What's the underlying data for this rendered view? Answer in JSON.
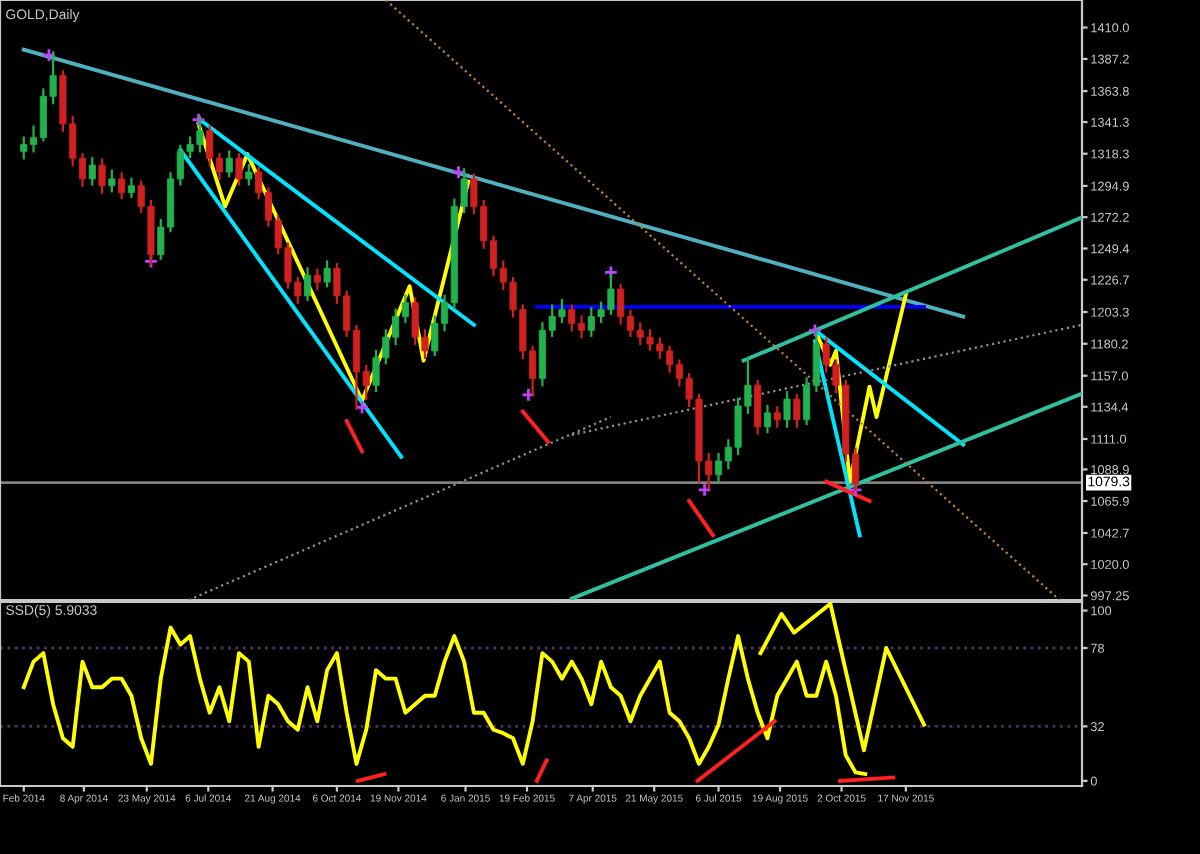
{
  "chart_data": [
    {
      "type": "candlestick",
      "title": "GOLD,Daily",
      "x": [
        "2014-02-24",
        "2014-03-03",
        "2014-03-10",
        "2014-03-17",
        "2014-03-24",
        "2014-03-31",
        "2014-04-07",
        "2014-04-14",
        "2014-04-21",
        "2014-04-28",
        "2014-05-05",
        "2014-05-12",
        "2014-05-19",
        "2014-05-26",
        "2014-06-02",
        "2014-06-09",
        "2014-06-16",
        "2014-06-23",
        "2014-06-30",
        "2014-07-07",
        "2014-07-14",
        "2014-07-21",
        "2014-07-28",
        "2014-08-04",
        "2014-08-11",
        "2014-08-18",
        "2014-08-25",
        "2014-09-01",
        "2014-09-08",
        "2014-09-15",
        "2014-09-22",
        "2014-09-29",
        "2014-10-06",
        "2014-10-13",
        "2014-10-20",
        "2014-10-27",
        "2014-11-03",
        "2014-11-10",
        "2014-11-17",
        "2014-11-24",
        "2014-12-01",
        "2014-12-08",
        "2014-12-15",
        "2014-12-22",
        "2014-12-29",
        "2015-01-05",
        "2015-01-12",
        "2015-01-19",
        "2015-01-26",
        "2015-02-02",
        "2015-02-09",
        "2015-02-16",
        "2015-02-23",
        "2015-03-02",
        "2015-03-09",
        "2015-03-16",
        "2015-03-23",
        "2015-03-30",
        "2015-04-06",
        "2015-04-13",
        "2015-04-20",
        "2015-04-27",
        "2015-05-04",
        "2015-05-11",
        "2015-05-18",
        "2015-05-25",
        "2015-06-01",
        "2015-06-08",
        "2015-06-15",
        "2015-06-22",
        "2015-06-29",
        "2015-07-06",
        "2015-07-13",
        "2015-07-20",
        "2015-07-27",
        "2015-08-03",
        "2015-08-10",
        "2015-08-17",
        "2015-08-24",
        "2015-08-31",
        "2015-09-07",
        "2015-09-14",
        "2015-09-21",
        "2015-09-28",
        "2015-10-05",
        "2015-10-12"
      ],
      "ohlc": [
        [
          1320,
          1330,
          1315,
          1325
        ],
        [
          1325,
          1338,
          1320,
          1330
        ],
        [
          1330,
          1365,
          1328,
          1360
        ],
        [
          1360,
          1392,
          1355,
          1375
        ],
        [
          1375,
          1378,
          1335,
          1340
        ],
        [
          1340,
          1345,
          1310,
          1315
        ],
        [
          1315,
          1318,
          1295,
          1300
        ],
        [
          1300,
          1315,
          1296,
          1310
        ],
        [
          1310,
          1314,
          1290,
          1295
        ],
        [
          1295,
          1306,
          1291,
          1300
        ],
        [
          1300,
          1304,
          1286,
          1290
        ],
        [
          1290,
          1300,
          1287,
          1295
        ],
        [
          1295,
          1298,
          1276,
          1280
        ],
        [
          1280,
          1284,
          1238,
          1245
        ],
        [
          1245,
          1270,
          1242,
          1265
        ],
        [
          1265,
          1304,
          1262,
          1300
        ],
        [
          1300,
          1324,
          1296,
          1320
        ],
        [
          1320,
          1330,
          1316,
          1325
        ],
        [
          1325,
          1345,
          1320,
          1335
        ],
        [
          1335,
          1338,
          1310,
          1315
        ],
        [
          1315,
          1318,
          1300,
          1305
        ],
        [
          1305,
          1320,
          1302,
          1315
        ],
        [
          1315,
          1318,
          1296,
          1300
        ],
        [
          1300,
          1310,
          1296,
          1305
        ],
        [
          1305,
          1308,
          1286,
          1290
        ],
        [
          1290,
          1293,
          1266,
          1270
        ],
        [
          1270,
          1273,
          1246,
          1250
        ],
        [
          1250,
          1253,
          1221,
          1225
        ],
        [
          1225,
          1228,
          1210,
          1215
        ],
        [
          1215,
          1235,
          1212,
          1230
        ],
        [
          1230,
          1234,
          1220,
          1225
        ],
        [
          1225,
          1240,
          1222,
          1235
        ],
        [
          1235,
          1238,
          1210,
          1215
        ],
        [
          1215,
          1218,
          1186,
          1190
        ],
        [
          1190,
          1193,
          1133,
          1160
        ],
        [
          1160,
          1164,
          1140,
          1150
        ],
        [
          1150,
          1175,
          1146,
          1170
        ],
        [
          1170,
          1190,
          1166,
          1185
        ],
        [
          1185,
          1205,
          1180,
          1200
        ],
        [
          1200,
          1215,
          1196,
          1210
        ],
        [
          1210,
          1213,
          1180,
          1185
        ],
        [
          1185,
          1190,
          1170,
          1175
        ],
        [
          1175,
          1200,
          1172,
          1195
        ],
        [
          1195,
          1215,
          1190,
          1210
        ],
        [
          1210,
          1285,
          1206,
          1280
        ],
        [
          1280,
          1307,
          1276,
          1300
        ],
        [
          1300,
          1303,
          1275,
          1280
        ],
        [
          1280,
          1284,
          1250,
          1255
        ],
        [
          1255,
          1258,
          1230,
          1235
        ],
        [
          1235,
          1240,
          1220,
          1225
        ],
        [
          1225,
          1228,
          1200,
          1205
        ],
        [
          1205,
          1208,
          1170,
          1175
        ],
        [
          1175,
          1178,
          1143,
          1155
        ],
        [
          1155,
          1195,
          1150,
          1190
        ],
        [
          1190,
          1208,
          1186,
          1200
        ],
        [
          1200,
          1212,
          1196,
          1205
        ],
        [
          1205,
          1208,
          1190,
          1195
        ],
        [
          1195,
          1200,
          1185,
          1190
        ],
        [
          1190,
          1206,
          1186,
          1200
        ],
        [
          1200,
          1210,
          1196,
          1205
        ],
        [
          1205,
          1230,
          1202,
          1220
        ],
        [
          1220,
          1223,
          1195,
          1200
        ],
        [
          1200,
          1204,
          1186,
          1190
        ],
        [
          1190,
          1195,
          1180,
          1185
        ],
        [
          1185,
          1190,
          1176,
          1180
        ],
        [
          1180,
          1184,
          1170,
          1175
        ],
        [
          1175,
          1178,
          1160,
          1165
        ],
        [
          1165,
          1168,
          1150,
          1155
        ],
        [
          1155,
          1158,
          1135,
          1140
        ],
        [
          1140,
          1143,
          1080,
          1095
        ],
        [
          1095,
          1100,
          1075,
          1085
        ],
        [
          1085,
          1100,
          1080,
          1095
        ],
        [
          1095,
          1110,
          1090,
          1105
        ],
        [
          1105,
          1140,
          1100,
          1135
        ],
        [
          1135,
          1170,
          1130,
          1150
        ],
        [
          1150,
          1153,
          1115,
          1120
        ],
        [
          1120,
          1135,
          1116,
          1130
        ],
        [
          1130,
          1134,
          1120,
          1125
        ],
        [
          1125,
          1145,
          1120,
          1140
        ],
        [
          1140,
          1143,
          1120,
          1125
        ],
        [
          1125,
          1155,
          1122,
          1150
        ],
        [
          1150,
          1190,
          1146,
          1180
        ],
        [
          1180,
          1184,
          1160,
          1165
        ],
        [
          1165,
          1168,
          1145,
          1150
        ],
        [
          1150,
          1153,
          1095,
          1100
        ],
        [
          1100,
          1104,
          1074,
          1078
        ]
      ],
      "colors": [
        "#22b14c",
        "#22b14c",
        "#22b14c",
        "#22b14c",
        "#d02020",
        "#d02020",
        "#d02020",
        "#22b14c",
        "#d02020",
        "#22b14c",
        "#d02020",
        "#22b14c",
        "#d02020",
        "#d02020",
        "#22b14c",
        "#22b14c",
        "#22b14c",
        "#22b14c",
        "#22b14c",
        "#d02020",
        "#d02020",
        "#22b14c",
        "#d02020",
        "#22b14c",
        "#d02020",
        "#d02020",
        "#d02020",
        "#d02020",
        "#d02020",
        "#22b14c",
        "#d02020",
        "#22b14c",
        "#d02020",
        "#d02020",
        "#d02020",
        "#d02020",
        "#22b14c",
        "#22b14c",
        "#22b14c",
        "#22b14c",
        "#d02020",
        "#d02020",
        "#22b14c",
        "#22b14c",
        "#22b14c",
        "#22b14c",
        "#d02020",
        "#d02020",
        "#d02020",
        "#d02020",
        "#d02020",
        "#d02020",
        "#d02020",
        "#22b14c",
        "#22b14c",
        "#22b14c",
        "#d02020",
        "#d02020",
        "#22b14c",
        "#22b14c",
        "#22b14c",
        "#d02020",
        "#d02020",
        "#d02020",
        "#d02020",
        "#d02020",
        "#d02020",
        "#d02020",
        "#d02020",
        "#d02020",
        "#d02020",
        "#22b14c",
        "#22b14c",
        "#22b14c",
        "#22b14c",
        "#d02020",
        "#22b14c",
        "#d02020",
        "#22b14c",
        "#d02020",
        "#22b14c",
        "#22b14c",
        "#d02020",
        "#d02020",
        "#d02020",
        "#d02020"
      ],
      "series": [
        {
          "type": "line",
          "x": [
            "2014-02-24",
            "2015-12-28"
          ],
          "values": [
            1394,
            1200
          ],
          "color": "#4fb0c0",
          "line_style": "solid"
        },
        {
          "type": "line",
          "x": [
            "2015-02-26",
            "2015-11-30"
          ],
          "values": [
            1207,
            1207
          ],
          "color": "#0000ff",
          "line_style": "solid"
        },
        {
          "type": "line",
          "x": [
            "2014-06-29",
            "2014-07-18",
            "2014-08-03",
            "2014-10-24",
            "2014-11-27",
            "2014-12-07",
            "2015-01-08"
          ],
          "values": [
            1340,
            1280,
            1318,
            1139,
            1222,
            1168,
            1298
          ],
          "color": "#ffff00",
          "line_style": "solid"
        },
        {
          "type": "line",
          "x": [
            "2014-06-30",
            "2015-01-12"
          ],
          "values": [
            1343,
            1194
          ],
          "color": "#00e5ff",
          "line_style": "solid"
        },
        {
          "type": "line",
          "x": [
            "2014-06-16",
            "2014-11-21"
          ],
          "values": [
            1321,
            1098
          ],
          "color": "#00e5ff",
          "line_style": "solid"
        },
        {
          "type": "line",
          "x": [
            "2015-09-13",
            "2015-09-24",
            "2015-09-28",
            "2015-10-08",
            "2015-10-22",
            "2015-10-27",
            "2015-11-17"
          ],
          "values": [
            1190,
            1165,
            1175,
            1080,
            1149,
            1127,
            1216
          ],
          "color": "#ffff00",
          "line_style": "solid"
        },
        {
          "type": "line",
          "x": [
            "2015-09-13",
            "2015-12-28"
          ],
          "values": [
            1190,
            1107
          ],
          "color": "#00e5ff",
          "line_style": "solid"
        },
        {
          "type": "line",
          "x": [
            "2015-09-13",
            "2015-10-15"
          ],
          "values": [
            1182,
            1041
          ],
          "color": "#00e5ff",
          "line_style": "solid"
        },
        {
          "type": "line",
          "x": [
            "2015-07-24",
            "2016-03-22"
          ],
          "values": [
            1168,
            1272
          ],
          "color": "#30c0a0",
          "line_style": "solid"
        },
        {
          "type": "line",
          "x": [
            "2015-03-23",
            "2016-03-22"
          ],
          "values": [
            995,
            1144
          ],
          "color": "#30c0a0",
          "line_style": "solid"
        },
        {
          "type": "line",
          "x": [
            "2014-11-10",
            "2016-03-06"
          ],
          "values": [
            1430,
            994
          ],
          "color": "#c08030",
          "line_style": "dotted"
        },
        {
          "type": "line",
          "x": [
            "2014-06-22",
            "2015-04-20"
          ],
          "values": [
            994,
            1127
          ],
          "color": "#909090",
          "line_style": "dotted"
        },
        {
          "type": "line",
          "x": [
            "2015-03-23",
            "2016-03-22"
          ],
          "values": [
            1114,
            1194
          ],
          "color": "#909090",
          "line_style": "dotted"
        },
        {
          "type": "line",
          "x": [
            "2014-10-13",
            "2014-10-24"
          ],
          "values": [
            1124,
            1102
          ],
          "color": "#ff2020",
          "line_style": "solid"
        },
        {
          "type": "line",
          "x": [
            "2015-02-16",
            "2015-03-06"
          ],
          "values": [
            1131,
            1109
          ],
          "color": "#ff2020",
          "line_style": "solid"
        },
        {
          "type": "line",
          "x": [
            "2015-06-15",
            "2015-07-02"
          ],
          "values": [
            1066,
            1041
          ],
          "color": "#ff2020",
          "line_style": "solid"
        },
        {
          "type": "line",
          "x": [
            "2015-09-21",
            "2015-10-22"
          ],
          "values": [
            1080,
            1066
          ],
          "color": "#ff2020",
          "line_style": "solid"
        },
        {
          "type": "scatter",
          "marker": "cross",
          "x": [
            "2014-03-14",
            "2014-05-26",
            "2014-06-29",
            "2014-10-24",
            "2015-01-01",
            "2015-02-20",
            "2015-04-20",
            "2015-06-26",
            "2015-09-13",
            "2015-10-12"
          ],
          "values": [
            1390,
            1240,
            1343,
            1134,
            1305,
            1143,
            1232,
            1074,
            1190,
            1074
          ],
          "color": "#c040ff"
        }
      ],
      "ref_lines": [
        {
          "axis": "y",
          "value": 1079.3,
          "label": "1079.3",
          "color": "#808080"
        }
      ],
      "xlim": [
        "2014-02-07",
        "2016-03-22"
      ],
      "ylim": [
        994,
        1430
      ],
      "yticks": [
        {
          "value": 1410,
          "label": "1410.0"
        },
        1387.2,
        1363.8,
        1341.3,
        1318.3,
        1294.9,
        1272.2,
        1249.4,
        1226.7,
        1203.3,
        1180.2,
        {
          "value": 1157,
          "label": "1157.0"
        },
        1134.4,
        {
          "value": 1111,
          "label": "1111.0"
        },
        1088.9,
        1065.9,
        1042.7,
        {
          "value": 1020,
          "label": "1020.0"
        },
        997.25
      ],
      "tick_labels": "y"
    },
    {
      "type": "line",
      "title": "SSD(5) 5.9033",
      "series": [
        {
          "type": "line",
          "color": "#ffff00",
          "line_style": "solid",
          "x": [
            "2014-02-24",
            "2014-03-03",
            "2014-03-10",
            "2014-03-17",
            "2014-03-24",
            "2014-03-31",
            "2014-04-07",
            "2014-04-14",
            "2014-04-21",
            "2014-04-28",
            "2014-05-05",
            "2014-05-12",
            "2014-05-19",
            "2014-05-26",
            "2014-06-02",
            "2014-06-09",
            "2014-06-16",
            "2014-06-23",
            "2014-06-30",
            "2014-07-07",
            "2014-07-14",
            "2014-07-21",
            "2014-07-28",
            "2014-08-04",
            "2014-08-11",
            "2014-08-18",
            "2014-08-25",
            "2014-09-01",
            "2014-09-08",
            "2014-09-15",
            "2014-09-22",
            "2014-09-29",
            "2014-10-06",
            "2014-10-13",
            "2014-10-20",
            "2014-10-27",
            "2014-11-03",
            "2014-11-10",
            "2014-11-17",
            "2014-11-24",
            "2014-12-01",
            "2014-12-08",
            "2014-12-15",
            "2014-12-22",
            "2014-12-29",
            "2015-01-05",
            "2015-01-12",
            "2015-01-19",
            "2015-01-26",
            "2015-02-02",
            "2015-02-09",
            "2015-02-16",
            "2015-02-23",
            "2015-03-02",
            "2015-03-09",
            "2015-03-16",
            "2015-03-23",
            "2015-03-30",
            "2015-04-06",
            "2015-04-13",
            "2015-04-20",
            "2015-04-27",
            "2015-05-04",
            "2015-05-11",
            "2015-05-18",
            "2015-05-25",
            "2015-06-01",
            "2015-06-08",
            "2015-06-15",
            "2015-06-22",
            "2015-06-29",
            "2015-07-06",
            "2015-07-13",
            "2015-07-20",
            "2015-07-27",
            "2015-08-03",
            "2015-08-10",
            "2015-08-17",
            "2015-08-24",
            "2015-08-31",
            "2015-09-07",
            "2015-09-14",
            "2015-09-21",
            "2015-09-28",
            "2015-10-05",
            "2015-10-12",
            "2015-10-19"
          ],
          "values": [
            55,
            70,
            75,
            45,
            25,
            20,
            70,
            55,
            55,
            60,
            60,
            50,
            25,
            10,
            60,
            90,
            80,
            85,
            60,
            40,
            55,
            35,
            75,
            70,
            20,
            50,
            45,
            35,
            30,
            55,
            35,
            65,
            75,
            40,
            10,
            30,
            65,
            60,
            60,
            40,
            45,
            50,
            50,
            70,
            85,
            70,
            40,
            40,
            30,
            28,
            25,
            10,
            35,
            75,
            70,
            60,
            70,
            60,
            45,
            70,
            55,
            50,
            35,
            50,
            60,
            70,
            40,
            35,
            25,
            10,
            20,
            33,
            60,
            85,
            60,
            40,
            25,
            50,
            60,
            70,
            50,
            50,
            70,
            50,
            15,
            5,
            4
          ]
        },
        {
          "type": "line",
          "color": "#ffff00",
          "line_style": "solid",
          "x": [
            "2015-08-05",
            "2015-08-20",
            "2015-08-29",
            "2015-09-24",
            "2015-10-18",
            "2015-11-03",
            "2015-11-30"
          ],
          "values": [
            75,
            98,
            87,
            104,
            18,
            78,
            33
          ]
        },
        {
          "type": "line",
          "color": "#ff2020",
          "line_style": "solid",
          "x": [
            "2014-10-21",
            "2014-11-09"
          ],
          "values": [
            0,
            4
          ]
        },
        {
          "type": "line",
          "color": "#ff2020",
          "line_style": "solid",
          "x": [
            "2015-02-26",
            "2015-03-05"
          ],
          "values": [
            0,
            12
          ]
        },
        {
          "type": "line",
          "color": "#ff2020",
          "line_style": "solid",
          "x": [
            "2015-06-21",
            "2015-08-15"
          ],
          "values": [
            0,
            35
          ]
        },
        {
          "type": "line",
          "color": "#ff2020",
          "line_style": "solid",
          "x": [
            "2015-10-01",
            "2015-11-08"
          ],
          "values": [
            0,
            2
          ]
        }
      ],
      "ref_lines": [
        {
          "axis": "y",
          "value": 78,
          "color": "#503060",
          "line_style": "dotted"
        },
        {
          "axis": "y",
          "value": 32,
          "color": "#503060",
          "line_style": "dotted"
        }
      ],
      "xlim": [
        "2014-02-07",
        "2016-03-22"
      ],
      "ylim": [
        -3,
        105
      ],
      "xticks": [
        {
          "value": "2014-02-24",
          "label": "Feb 2014"
        },
        {
          "value": "2014-04-08",
          "label": "8 Apr 2014"
        },
        {
          "value": "2014-05-23",
          "label": "23 May 2014"
        },
        {
          "value": "2014-07-06",
          "label": "6 Jul 2014"
        },
        {
          "value": "2014-08-21",
          "label": "21 Aug 2014"
        },
        {
          "value": "2014-10-06",
          "label": "6 Oct 2014"
        },
        {
          "value": "2014-11-19",
          "label": "19 Nov 2014"
        },
        {
          "value": "2015-01-06",
          "label": "6 Jan 2015"
        },
        {
          "value": "2015-02-19",
          "label": "19 Feb 2015"
        },
        {
          "value": "2015-04-07",
          "label": "7 Apr 2015"
        },
        {
          "value": "2015-05-21",
          "label": "21 May 2015"
        },
        {
          "value": "2015-07-06",
          "label": "6 Jul 2015"
        },
        {
          "value": "2015-08-19",
          "label": "19 Aug 2015"
        },
        {
          "value": "2015-10-02",
          "label": "2 Oct 2015"
        },
        {
          "value": "2015-11-17",
          "label": "17 Nov 2015"
        }
      ],
      "yticks": [
        0,
        32,
        78,
        100
      ]
    }
  ]
}
